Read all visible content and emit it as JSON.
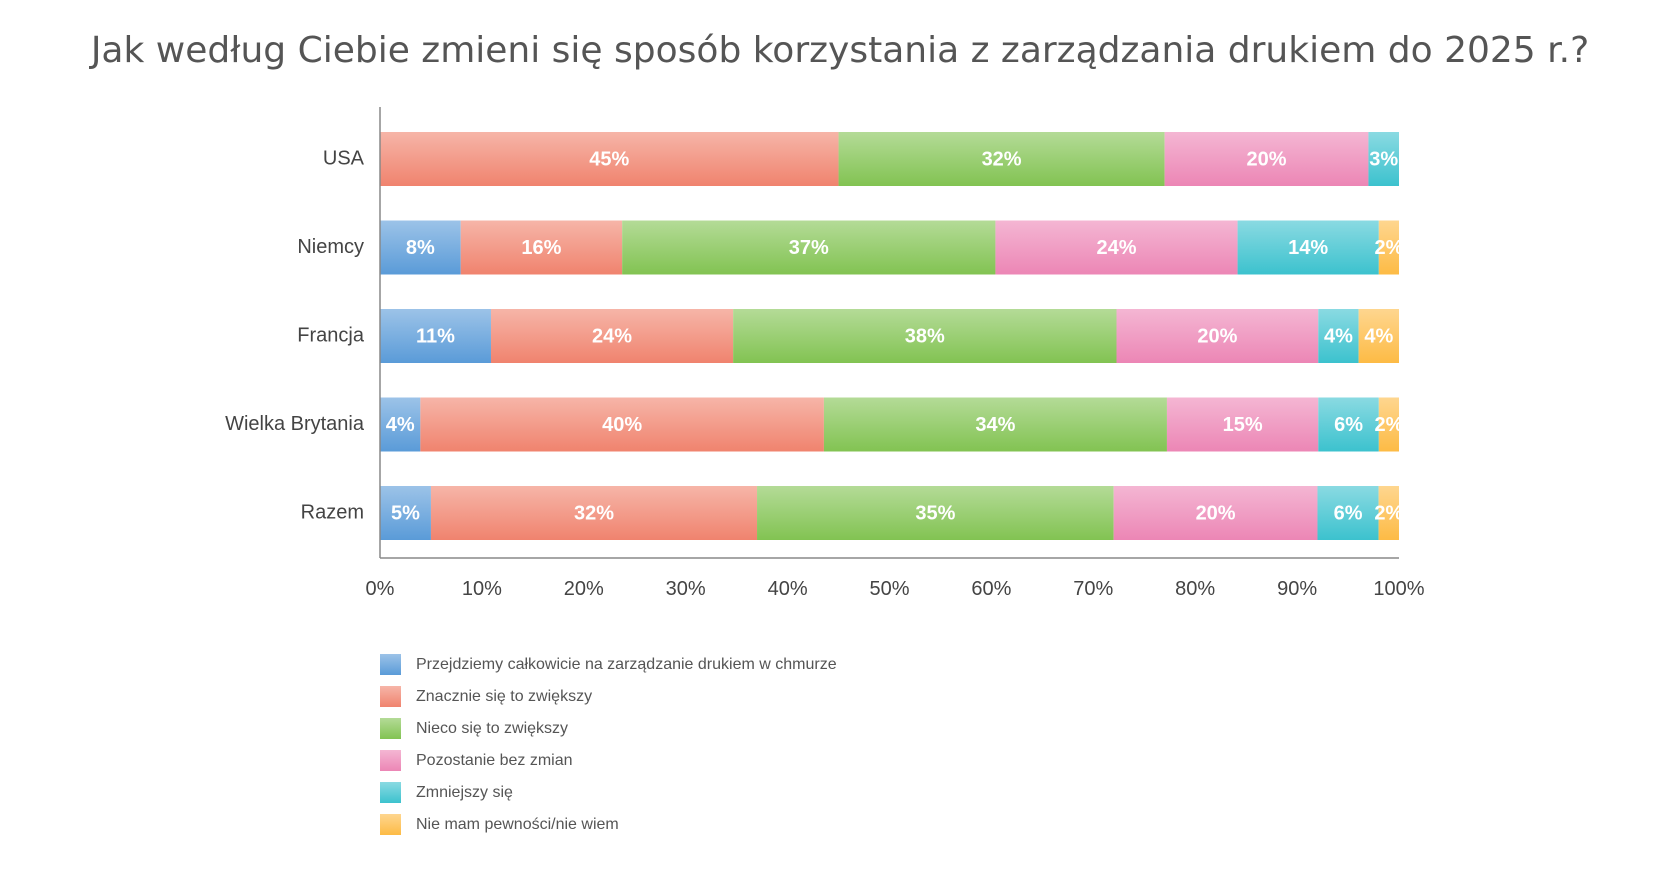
{
  "chart_data": {
    "type": "bar",
    "orientation": "horizontal",
    "stacked": true,
    "title": "Jak według Ciebie zmieni się sposób korzystania z zarządzania drukiem do 2025 r.?",
    "categories": [
      "USA",
      "Niemcy",
      "Francja",
      "Wielka Brytania",
      "Razem"
    ],
    "series": [
      {
        "name": "Przejdziemy całkowicie na zarządzanie drukiem w chmurze",
        "color": "#5a9bd8",
        "values": [
          0,
          8,
          11,
          4,
          5
        ]
      },
      {
        "name": "Znacznie się to zwiększy",
        "color": "#f0836e",
        "values": [
          45,
          16,
          24,
          40,
          32
        ]
      },
      {
        "name": "Nieco się to zwiększy",
        "color": "#82c352",
        "values": [
          32,
          37,
          38,
          34,
          35
        ]
      },
      {
        "name": "Pozostanie bez zmian",
        "color": "#ec86b5",
        "values": [
          20,
          24,
          20,
          15,
          20
        ]
      },
      {
        "name": "Zmniejszy się",
        "color": "#3cc2ce",
        "values": [
          3,
          14,
          4,
          6,
          6
        ]
      },
      {
        "name": "Nie mam pewności/nie wiem",
        "color": "#fdbb45",
        "values": [
          0,
          2,
          4,
          2,
          2
        ]
      }
    ],
    "xlim": [
      0,
      100
    ],
    "xticks": [
      "0%",
      "10%",
      "20%",
      "30%",
      "40%",
      "50%",
      "60%",
      "70%",
      "80%",
      "90%",
      "100%"
    ],
    "legend_position": "bottom-left",
    "grid": false
  }
}
